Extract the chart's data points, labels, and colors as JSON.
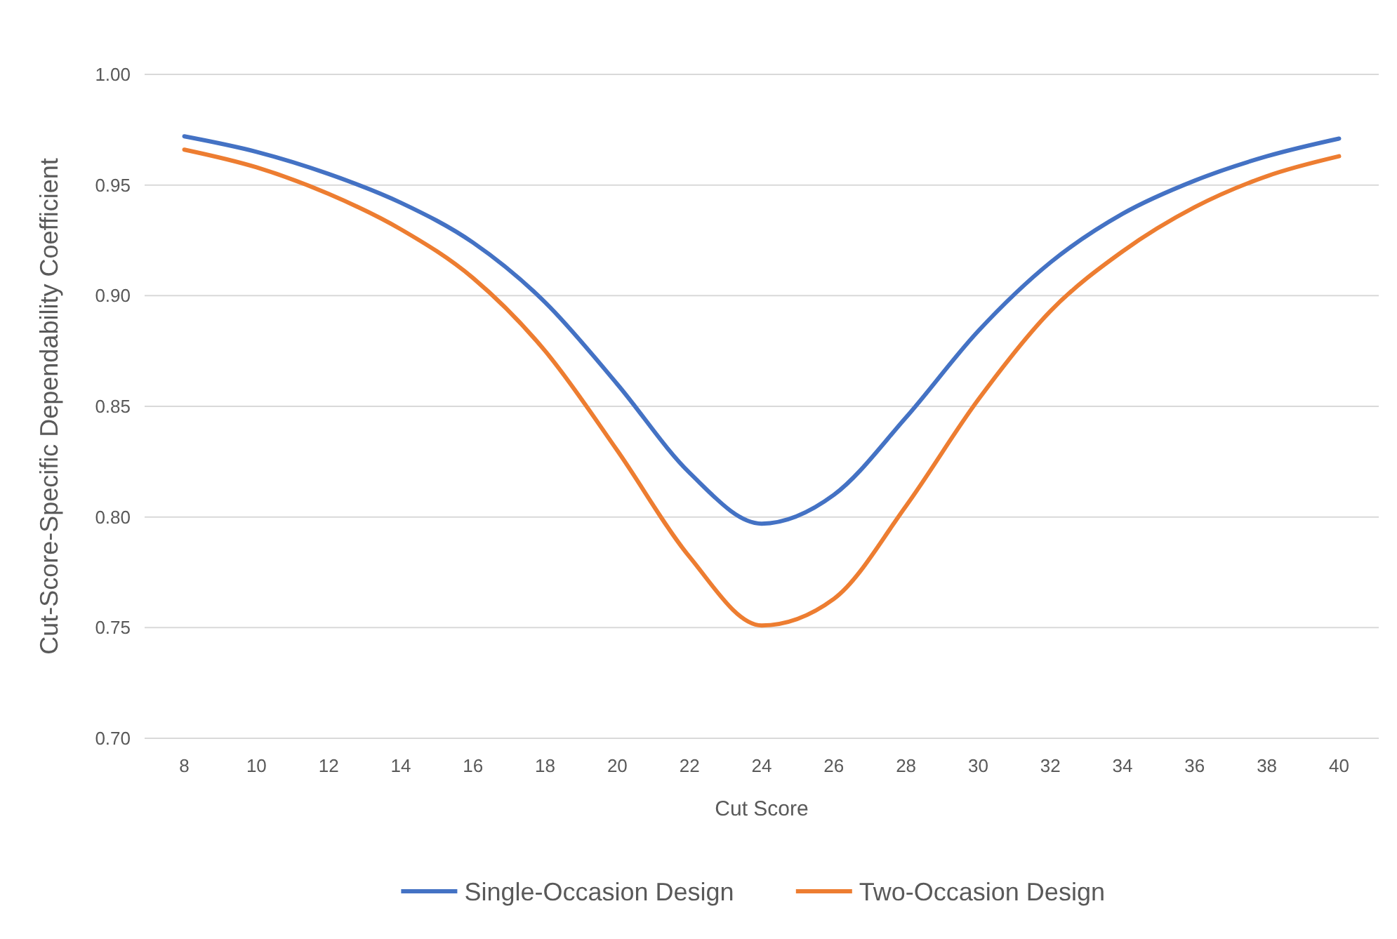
{
  "chart_data": {
    "type": "line",
    "xlabel": "Cut Score",
    "ylabel": "Cut-Score-Specific Dependability Coefficient",
    "x": [
      8,
      10,
      12,
      14,
      16,
      18,
      20,
      22,
      24,
      26,
      28,
      30,
      32,
      34,
      36,
      38,
      40
    ],
    "series": [
      {
        "name": "Single-Occasion Design",
        "color": "#4472c4",
        "values": [
          0.972,
          0.965,
          0.955,
          0.942,
          0.924,
          0.897,
          0.86,
          0.82,
          0.797,
          0.81,
          0.845,
          0.884,
          0.915,
          0.937,
          0.952,
          0.963,
          0.971
        ]
      },
      {
        "name": "Two-Occasion Design",
        "color": "#ed7d31",
        "values": [
          0.966,
          0.958,
          0.946,
          0.93,
          0.908,
          0.875,
          0.83,
          0.782,
          0.751,
          0.763,
          0.805,
          0.853,
          0.893,
          0.92,
          0.94,
          0.954,
          0.963
        ]
      }
    ],
    "xlim": [
      6.9,
      41.1
    ],
    "xticks": [
      8,
      10,
      12,
      14,
      16,
      18,
      20,
      22,
      24,
      26,
      28,
      30,
      32,
      34,
      36,
      38,
      40
    ],
    "ylim": [
      0.7,
      1
    ],
    "yticks": [
      {
        "value": 0.7,
        "label": "0.70"
      },
      {
        "value": 0.75,
        "label": "0.75"
      },
      {
        "value": 0.8,
        "label": "0.80"
      },
      {
        "value": 0.85,
        "label": "0.85"
      },
      {
        "value": 0.9,
        "label": "0.90"
      },
      {
        "value": 0.95,
        "label": "0.95"
      },
      {
        "value": 1,
        "label": "1.00"
      }
    ],
    "grid": "y",
    "legend": "bottom",
    "line_style": "solid"
  }
}
